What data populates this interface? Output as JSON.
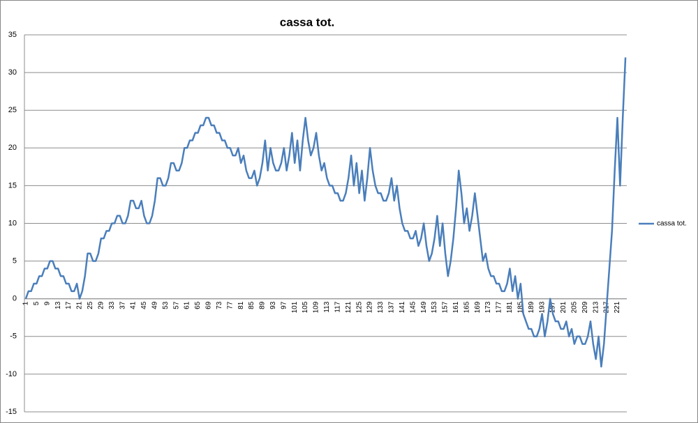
{
  "chart_data": {
    "type": "line",
    "title": "cassa tot.",
    "categories": [
      1,
      null,
      null,
      null,
      5,
      null,
      null,
      null,
      9,
      null,
      null,
      null,
      13,
      null,
      null,
      null,
      17,
      null,
      null,
      null,
      21,
      null,
      null,
      null,
      25,
      null,
      null,
      null,
      29,
      null,
      null,
      null,
      33,
      null,
      null,
      null,
      37,
      null,
      null,
      null,
      41,
      null,
      null,
      null,
      45,
      null,
      null,
      null,
      49,
      null,
      null,
      null,
      53,
      null,
      null,
      null,
      57,
      null,
      null,
      null,
      61,
      null,
      null,
      null,
      65,
      null,
      null,
      null,
      69,
      null,
      null,
      null,
      73,
      null,
      null,
      null,
      77,
      null,
      null,
      null,
      81,
      null,
      null,
      null,
      85,
      null,
      null,
      null,
      89,
      null,
      null,
      null,
      93,
      null,
      null,
      null,
      97,
      null,
      null,
      null,
      101,
      null,
      null,
      null,
      105,
      null,
      null,
      null,
      109,
      null,
      null,
      null,
      113,
      null,
      null,
      null,
      117,
      null,
      null,
      null,
      121,
      null,
      null,
      null,
      125,
      null,
      null,
      null,
      129,
      null,
      null,
      null,
      133,
      null,
      null,
      null,
      137,
      null,
      null,
      null,
      141,
      null,
      null,
      null,
      145,
      null,
      null,
      null,
      149,
      null,
      null,
      null,
      153,
      null,
      null,
      null,
      157,
      null,
      null,
      null,
      161,
      null,
      null,
      null,
      165,
      null,
      null,
      null,
      169,
      null,
      null,
      null,
      173,
      null,
      null,
      null,
      177,
      null,
      null,
      null,
      181,
      null,
      null,
      null,
      185,
      null,
      null,
      null,
      189,
      null,
      null,
      null,
      193,
      null,
      null,
      null,
      197,
      null,
      null,
      null,
      201,
      null,
      null,
      null,
      205,
      null,
      null,
      null,
      209,
      null,
      null,
      null,
      213,
      null,
      null,
      null,
      217,
      null,
      null,
      null,
      221,
      null,
      null,
      null
    ],
    "series": [
      {
        "name": "cassa tot.",
        "color": "#4a7ebb",
        "values": [
          0,
          1,
          1,
          2,
          2,
          3,
          3,
          4,
          4,
          5,
          5,
          4,
          4,
          3,
          3,
          2,
          2,
          1,
          1,
          2,
          0,
          1,
          3,
          6,
          6,
          5,
          5,
          6,
          8,
          8,
          9,
          9,
          10,
          10,
          11,
          11,
          10,
          10,
          11,
          13,
          13,
          12,
          12,
          13,
          11,
          10,
          10,
          11,
          13,
          16,
          16,
          15,
          15,
          16,
          18,
          18,
          17,
          17,
          18,
          20,
          20,
          21,
          21,
          22,
          22,
          23,
          23,
          24,
          24,
          23,
          23,
          22,
          22,
          21,
          21,
          20,
          20,
          19,
          19,
          20,
          18,
          19,
          17,
          16,
          16,
          17,
          15,
          16,
          18,
          21,
          17,
          20,
          18,
          17,
          17,
          18,
          20,
          17,
          19,
          22,
          18,
          21,
          17,
          21,
          24,
          21,
          19,
          20,
          22,
          19,
          17,
          18,
          16,
          15,
          15,
          14,
          14,
          13,
          13,
          14,
          16,
          19,
          15,
          18,
          14,
          17,
          13,
          16,
          20,
          17,
          15,
          14,
          14,
          13,
          13,
          14,
          16,
          13,
          15,
          12,
          10,
          9,
          9,
          8,
          8,
          9,
          7,
          8,
          10,
          7,
          5,
          6,
          8,
          11,
          7,
          10,
          6,
          3,
          5,
          8,
          12,
          17,
          14,
          10,
          12,
          9,
          11,
          14,
          11,
          8,
          5,
          6,
          4,
          3,
          3,
          2,
          2,
          1,
          1,
          2,
          4,
          1,
          3,
          0,
          2,
          -2,
          -3,
          -4,
          -4,
          -5,
          -5,
          -4,
          -2,
          -5,
          -3,
          0,
          -2,
          -3,
          -3,
          -4,
          -4,
          -3,
          -5,
          -4,
          -6,
          -5,
          -5,
          -6,
          -6,
          -5,
          -3,
          -6,
          -8,
          -5,
          -9,
          -6,
          -1,
          4,
          9,
          17,
          24,
          15,
          24,
          32
        ]
      }
    ],
    "ylim": [
      -15,
      35
    ],
    "yticks": [
      -15,
      -10,
      -5,
      0,
      5,
      10,
      15,
      20,
      25,
      30,
      35
    ],
    "grid": true,
    "legend": "right"
  }
}
